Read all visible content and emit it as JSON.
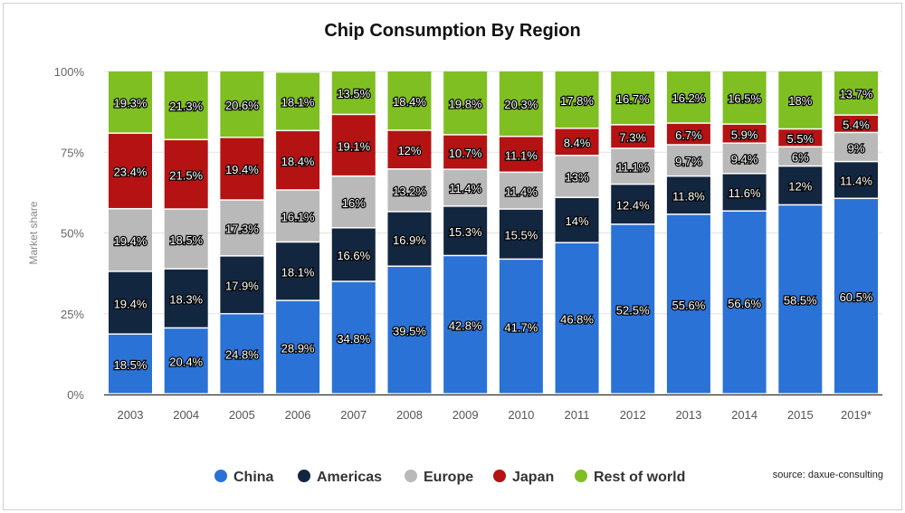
{
  "chart_data": {
    "type": "bar",
    "stacked": true,
    "title": "Chip Consumption By Region",
    "xlabel": "",
    "ylabel": "Market share",
    "ylim": [
      0,
      100
    ],
    "yticks": [
      "0%",
      "25%",
      "50%",
      "75%",
      "100%"
    ],
    "grid": true,
    "legend_position": "bottom",
    "categories": [
      "2003",
      "2004",
      "2005",
      "2006",
      "2007",
      "2008",
      "2009",
      "2010",
      "2011",
      "2012",
      "2013",
      "2014",
      "2015",
      "2019*"
    ],
    "series": [
      {
        "name": "China",
        "color": "#2a72d6",
        "values": [
          18.5,
          20.4,
          24.8,
          28.9,
          34.8,
          39.5,
          42.8,
          41.7,
          46.8,
          52.5,
          55.6,
          56.6,
          58.5,
          60.5
        ]
      },
      {
        "name": "Americas",
        "color": "#13263f",
        "values": [
          19.4,
          18.3,
          17.9,
          18.1,
          16.6,
          16.9,
          15.3,
          15.5,
          14,
          12.4,
          11.8,
          11.6,
          12,
          11.4
        ]
      },
      {
        "name": "Europe",
        "color": "#b9b9b9",
        "values": [
          19.4,
          18.5,
          17.3,
          16.1,
          16,
          13.2,
          11.4,
          11.4,
          13,
          11.1,
          9.7,
          9.4,
          6,
          9
        ]
      },
      {
        "name": "Japan",
        "color": "#b51313",
        "values": [
          23.4,
          21.5,
          19.4,
          18.4,
          19.1,
          12,
          10.7,
          11.1,
          8.4,
          7.3,
          6.7,
          5.9,
          5.5,
          5.4
        ]
      },
      {
        "name": "Rest of world",
        "color": "#7fbf22",
        "values": [
          19.3,
          21.3,
          20.6,
          18.1,
          13.5,
          18.4,
          19.8,
          20.3,
          17.8,
          16.7,
          16.2,
          16.5,
          18,
          13.7
        ]
      }
    ],
    "source": "source: daxue-consulting"
  }
}
